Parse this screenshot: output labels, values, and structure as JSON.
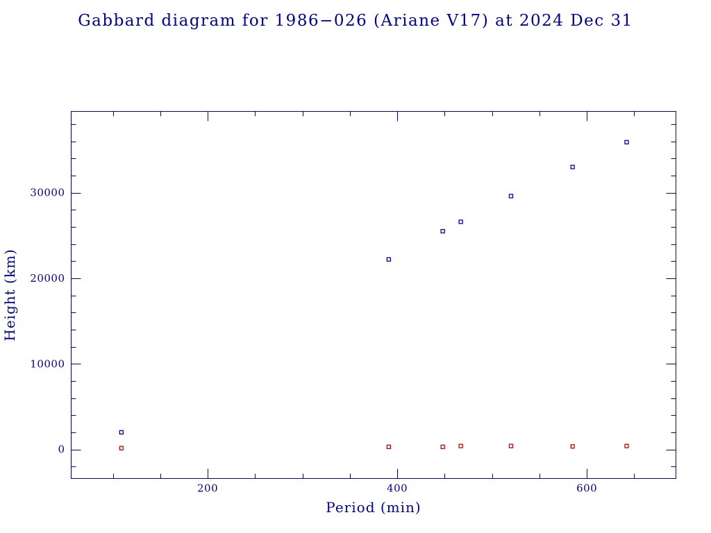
{
  "chart_data": {
    "type": "scatter",
    "title": "Gabbard diagram for 1986−026 (Ariane V17) at 2024 Dec 31",
    "xlabel": "Period (min)",
    "ylabel": "Height (km)",
    "xlim": [
      56,
      694
    ],
    "ylim": [
      -3400,
      39500
    ],
    "x_major_ticks": [
      200,
      400,
      600
    ],
    "x_minor_ticks": [
      100,
      150,
      250,
      300,
      350,
      450,
      500,
      550,
      650
    ],
    "y_major_ticks": [
      0,
      10000,
      20000,
      30000
    ],
    "y_minor_ticks": [
      -2000,
      2000,
      4000,
      6000,
      8000,
      12000,
      14000,
      16000,
      18000,
      22000,
      24000,
      26000,
      28000,
      32000,
      34000,
      36000,
      38000
    ],
    "x_tick_labels": [
      "200",
      "400",
      "600"
    ],
    "y_tick_labels": [
      "0",
      "10000",
      "20000",
      "30000"
    ],
    "grid": false,
    "series": [
      {
        "color": "#0000c0",
        "points": [
          [
            109,
            2000
          ],
          [
            391,
            22200
          ],
          [
            448,
            25500
          ],
          [
            467,
            26600
          ],
          [
            520,
            29600
          ],
          [
            585,
            33000
          ],
          [
            642,
            35900
          ]
        ]
      },
      {
        "color": "#d00000",
        "points": [
          [
            109,
            150
          ],
          [
            391,
            300
          ],
          [
            448,
            300
          ],
          [
            467,
            400
          ],
          [
            520,
            400
          ],
          [
            585,
            350
          ],
          [
            642,
            400
          ]
        ]
      }
    ]
  }
}
